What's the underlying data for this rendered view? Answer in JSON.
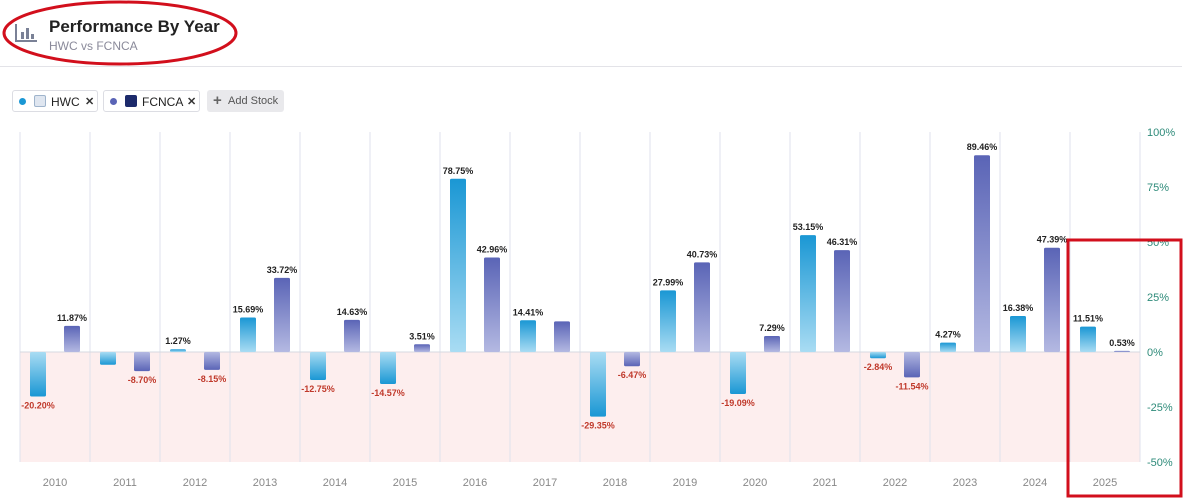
{
  "header": {
    "title": "Performance By Year",
    "subtitle": "HWC vs FCNCA",
    "icon": "bar-chart-icon"
  },
  "legend": {
    "items": [
      {
        "ticker": "HWC",
        "dot_color": "#1a97d4",
        "logo_icon": "hwc-logo-icon",
        "remove_icon": "close-icon"
      },
      {
        "ticker": "FCNCA",
        "dot_color": "#5a64b6",
        "logo_icon": "fcnca-logo-icon",
        "remove_icon": "close-icon"
      }
    ],
    "add_label": "Add Stock"
  },
  "colors": {
    "hwc": "#1a97d4",
    "fcnca": "#5a64b6",
    "negative_band": "#fdeeee",
    "positive_label": "#222222",
    "negative_label": "#c0392b",
    "axis_label": "#2e8b7a",
    "year_label": "#888888",
    "annotation": "#d20f1c"
  },
  "chart_data": {
    "type": "bar",
    "categories": [
      "2010",
      "2011",
      "2012",
      "2013",
      "2014",
      "2015",
      "2016",
      "2017",
      "2018",
      "2019",
      "2020",
      "2021",
      "2022",
      "2023",
      "2024",
      "2025"
    ],
    "series": [
      {
        "name": "HWC",
        "values": [
          -20.2,
          -5.8,
          1.27,
          15.69,
          -12.75,
          -14.57,
          78.75,
          14.41,
          -29.35,
          27.99,
          -19.09,
          53.15,
          -2.84,
          4.27,
          16.38,
          11.51
        ],
        "labels": [
          "-20.20%",
          "",
          "1.27%",
          "15.69%",
          "-12.75%",
          "-14.57%",
          "78.75%",
          "14.41%",
          "-29.35%",
          "27.99%",
          "-19.09%",
          "53.15%",
          "-2.84%",
          "4.27%",
          "16.38%",
          "11.51%"
        ]
      },
      {
        "name": "FCNCA",
        "values": [
          11.87,
          -8.7,
          -8.15,
          33.72,
          14.63,
          3.51,
          42.96,
          13.9,
          -6.47,
          40.73,
          7.29,
          46.31,
          -11.54,
          89.46,
          47.39,
          0.53
        ],
        "labels": [
          "11.87%",
          "-8.70%",
          "-8.15%",
          "33.72%",
          "14.63%",
          "3.51%",
          "42.96%",
          "",
          "-6.47%",
          "40.73%",
          "7.29%",
          "46.31%",
          "-11.54%",
          "89.46%",
          "47.39%",
          "0.53%"
        ]
      }
    ],
    "ylim": [
      -50,
      100
    ],
    "yticks": [
      100,
      75,
      50,
      25,
      0,
      -25,
      -50
    ],
    "ytick_labels": [
      "100%",
      "75%",
      "50%",
      "25%",
      "0%",
      "-25%",
      "-50%"
    ],
    "y_axis_side": "right",
    "grid": "vertical category separators",
    "legend_placement": "top-left"
  }
}
